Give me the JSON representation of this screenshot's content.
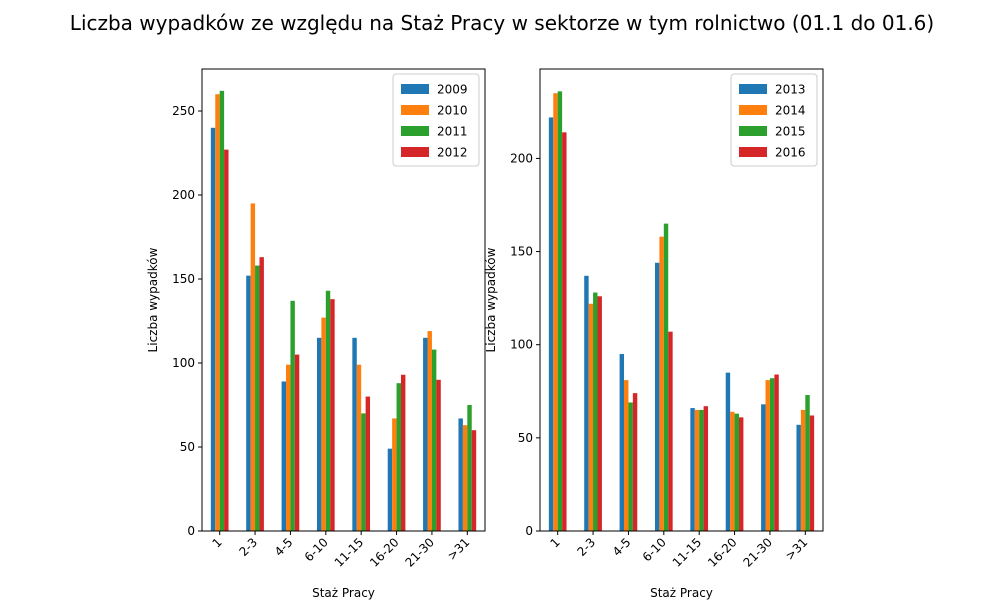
{
  "suptitle": "Liczba wypadków ze względu na Staż Pracy w sektorze    w tym rolnictwo (01.1 do 01.6)",
  "chart_data": [
    {
      "type": "bar",
      "xlabel": "Staż Pracy",
      "ylabel": "Liczba wypadków",
      "categories": [
        "1",
        "2-3",
        "4-5",
        "6-10",
        "11-15",
        "16-20",
        "21-30",
        ">31"
      ],
      "ylim": [
        0,
        275
      ],
      "yticks": [
        0,
        50,
        100,
        150,
        200,
        250
      ],
      "legend_position": "top-right",
      "series": [
        {
          "name": "2009",
          "color": "#1f77b4",
          "values": [
            240,
            152,
            89,
            115,
            115,
            49,
            115,
            67
          ]
        },
        {
          "name": "2010",
          "color": "#ff7f0e",
          "values": [
            260,
            195,
            99,
            127,
            99,
            67,
            119,
            63
          ]
        },
        {
          "name": "2011",
          "color": "#2ca02c",
          "values": [
            262,
            158,
            137,
            143,
            70,
            88,
            108,
            75
          ]
        },
        {
          "name": "2012",
          "color": "#d62728",
          "values": [
            227,
            163,
            105,
            138,
            80,
            93,
            90,
            60
          ]
        }
      ]
    },
    {
      "type": "bar",
      "xlabel": "Staż Pracy",
      "ylabel": "Liczba wypadków",
      "categories": [
        "1",
        "2-3",
        "4-5",
        "6-10",
        "11-15",
        "16-20",
        "21-30",
        ">31"
      ],
      "ylim": [
        0,
        248
      ],
      "yticks": [
        0,
        50,
        100,
        150,
        200
      ],
      "legend_position": "top-right",
      "series": [
        {
          "name": "2013",
          "color": "#1f77b4",
          "values": [
            222,
            137,
            95,
            144,
            66,
            85,
            68,
            57
          ]
        },
        {
          "name": "2014",
          "color": "#ff7f0e",
          "values": [
            235,
            122,
            81,
            158,
            65,
            64,
            81,
            65
          ]
        },
        {
          "name": "2015",
          "color": "#2ca02c",
          "values": [
            236,
            128,
            69,
            165,
            65,
            63,
            82,
            73
          ]
        },
        {
          "name": "2016",
          "color": "#d62728",
          "values": [
            214,
            126,
            74,
            107,
            67,
            61,
            84,
            62
          ]
        }
      ]
    }
  ]
}
